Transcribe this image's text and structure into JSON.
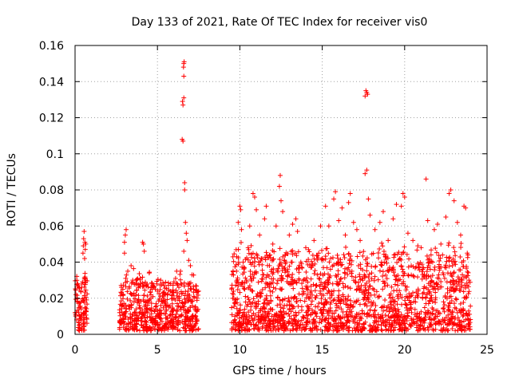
{
  "chart_data": {
    "type": "scatter",
    "title": "Day 133 of 2021, Rate Of TEC Index for receiver vis0",
    "xlabel": "GPS time / hours",
    "ylabel": "ROTI / TECUs",
    "xlim": [
      0,
      25
    ],
    "ylim": [
      0,
      0.16
    ],
    "xticks": [
      {
        "value": 0,
        "label": "0"
      },
      {
        "value": 5,
        "label": "5"
      },
      {
        "value": 10,
        "label": "10"
      },
      {
        "value": 15,
        "label": "15"
      },
      {
        "value": 20,
        "label": "20"
      },
      {
        "value": 25,
        "label": "25"
      }
    ],
    "yticks": [
      {
        "value": 0,
        "label": "0"
      },
      {
        "value": 0.02,
        "label": "0.02"
      },
      {
        "value": 0.04,
        "label": "0.04"
      },
      {
        "value": 0.06,
        "label": "0.06"
      },
      {
        "value": 0.08,
        "label": "0.08"
      },
      {
        "value": 0.1,
        "label": "0.1"
      },
      {
        "value": 0.12,
        "label": "0.12"
      },
      {
        "value": 0.14,
        "label": "0.14"
      },
      {
        "value": 0.16,
        "label": "0.16"
      }
    ],
    "grid": true,
    "marker": "+",
    "series": [
      {
        "name": "ROTI",
        "color": "#ff0000",
        "points": [
          [
            0.0,
            0.012
          ],
          [
            0.05,
            0.022
          ],
          [
            0.1,
            0.008
          ],
          [
            0.15,
            0.018
          ],
          [
            0.2,
            0.027
          ],
          [
            0.25,
            0.005
          ],
          [
            0.3,
            0.015
          ],
          [
            0.35,
            0.024
          ],
          [
            0.4,
            0.011
          ],
          [
            0.45,
            0.029
          ],
          [
            0.5,
            0.006
          ],
          [
            0.55,
            0.02
          ],
          [
            0.6,
            0.031
          ],
          [
            0.65,
            0.013
          ],
          [
            0.7,
            0.009
          ],
          [
            0.48,
            0.045
          ],
          [
            0.5,
            0.049
          ],
          [
            0.52,
            0.053
          ],
          [
            0.55,
            0.057
          ],
          [
            0.6,
            0.051
          ],
          [
            0.65,
            0.05
          ],
          [
            0.58,
            0.042
          ],
          [
            0.62,
            0.047
          ],
          [
            2.8,
            0.008
          ],
          [
            2.9,
            0.025
          ],
          [
            3.0,
            0.045
          ],
          [
            3.05,
            0.055
          ],
          [
            3.1,
            0.058
          ],
          [
            3.0,
            0.051
          ],
          [
            3.2,
            0.035
          ],
          [
            3.3,
            0.014
          ],
          [
            3.4,
            0.038
          ],
          [
            3.5,
            0.03
          ],
          [
            3.6,
            0.012
          ],
          [
            3.7,
            0.022
          ],
          [
            3.8,
            0.009
          ],
          [
            3.9,
            0.016
          ],
          [
            4.0,
            0.028
          ],
          [
            4.1,
            0.051
          ],
          [
            4.15,
            0.05
          ],
          [
            4.2,
            0.046
          ],
          [
            4.3,
            0.018
          ],
          [
            4.4,
            0.012
          ],
          [
            4.5,
            0.034
          ],
          [
            4.6,
            0.02
          ],
          [
            4.7,
            0.008
          ],
          [
            4.8,
            0.026
          ],
          [
            4.9,
            0.014
          ],
          [
            5.0,
            0.024
          ],
          [
            5.1,
            0.011
          ],
          [
            5.2,
            0.03
          ],
          [
            5.3,
            0.018
          ],
          [
            5.4,
            0.027
          ],
          [
            5.5,
            0.009
          ],
          [
            5.6,
            0.022
          ],
          [
            5.7,
            0.015
          ],
          [
            5.8,
            0.028
          ],
          [
            5.9,
            0.013
          ],
          [
            6.0,
            0.02
          ],
          [
            6.1,
            0.031
          ],
          [
            6.2,
            0.017
          ],
          [
            6.3,
            0.026
          ],
          [
            6.4,
            0.035
          ],
          [
            6.5,
            0.108
          ],
          [
            6.55,
            0.107
          ],
          [
            6.55,
            0.127
          ],
          [
            6.6,
            0.131
          ],
          [
            6.52,
            0.129
          ],
          [
            6.6,
            0.143
          ],
          [
            6.58,
            0.148
          ],
          [
            6.6,
            0.15
          ],
          [
            6.62,
            0.151
          ],
          [
            6.65,
            0.084
          ],
          [
            6.65,
            0.08
          ],
          [
            6.7,
            0.062
          ],
          [
            6.75,
            0.056
          ],
          [
            6.8,
            0.052
          ],
          [
            6.6,
            0.046
          ],
          [
            6.9,
            0.041
          ],
          [
            7.0,
            0.038
          ],
          [
            7.1,
            0.033
          ],
          [
            7.2,
            0.025
          ],
          [
            7.3,
            0.014
          ],
          [
            7.4,
            0.02
          ],
          [
            6.7,
            0.012
          ],
          [
            6.9,
            0.007
          ],
          [
            7.1,
            0.01
          ],
          [
            9.6,
            0.022
          ],
          [
            9.7,
            0.01
          ],
          [
            9.8,
            0.035
          ],
          [
            9.9,
            0.062
          ],
          [
            10.0,
            0.071
          ],
          [
            10.05,
            0.069
          ],
          [
            10.1,
            0.058
          ],
          [
            10.2,
            0.04
          ],
          [
            10.3,
            0.025
          ],
          [
            10.5,
            0.048
          ],
          [
            10.6,
            0.06
          ],
          [
            10.8,
            0.078
          ],
          [
            10.9,
            0.076
          ],
          [
            11.0,
            0.069
          ],
          [
            11.2,
            0.055
          ],
          [
            11.3,
            0.042
          ],
          [
            11.5,
            0.064
          ],
          [
            11.6,
            0.071
          ],
          [
            11.8,
            0.038
          ],
          [
            12.0,
            0.05
          ],
          [
            12.2,
            0.06
          ],
          [
            12.4,
            0.082
          ],
          [
            12.45,
            0.088
          ],
          [
            12.5,
            0.074
          ],
          [
            12.6,
            0.068
          ],
          [
            12.8,
            0.04
          ],
          [
            13.0,
            0.055
          ],
          [
            13.2,
            0.061
          ],
          [
            13.4,
            0.064
          ],
          [
            13.5,
            0.057
          ],
          [
            13.7,
            0.04
          ],
          [
            14.0,
            0.048
          ],
          [
            14.3,
            0.037
          ],
          [
            14.5,
            0.052
          ],
          [
            14.7,
            0.033
          ],
          [
            14.9,
            0.06
          ],
          [
            15.0,
            0.042
          ],
          [
            15.2,
            0.071
          ],
          [
            15.4,
            0.06
          ],
          [
            15.7,
            0.075
          ],
          [
            15.8,
            0.079
          ],
          [
            16.0,
            0.063
          ],
          [
            16.2,
            0.07
          ],
          [
            16.4,
            0.055
          ],
          [
            16.6,
            0.073
          ],
          [
            16.7,
            0.078
          ],
          [
            16.9,
            0.062
          ],
          [
            17.1,
            0.058
          ],
          [
            17.3,
            0.052
          ],
          [
            17.6,
            0.132
          ],
          [
            17.65,
            0.135
          ],
          [
            17.7,
            0.134
          ],
          [
            17.75,
            0.133
          ],
          [
            17.6,
            0.089
          ],
          [
            17.7,
            0.091
          ],
          [
            17.8,
            0.075
          ],
          [
            17.9,
            0.066
          ],
          [
            18.2,
            0.058
          ],
          [
            18.5,
            0.062
          ],
          [
            18.7,
            0.068
          ],
          [
            19.0,
            0.052
          ],
          [
            19.3,
            0.064
          ],
          [
            19.5,
            0.072
          ],
          [
            19.8,
            0.071
          ],
          [
            19.9,
            0.078
          ],
          [
            20.0,
            0.076
          ],
          [
            20.2,
            0.056
          ],
          [
            20.5,
            0.052
          ],
          [
            20.8,
            0.049
          ],
          [
            21.0,
            0.048
          ],
          [
            21.3,
            0.086
          ],
          [
            21.4,
            0.063
          ],
          [
            21.6,
            0.044
          ],
          [
            21.8,
            0.058
          ],
          [
            22.0,
            0.061
          ],
          [
            22.2,
            0.05
          ],
          [
            22.5,
            0.065
          ],
          [
            22.7,
            0.078
          ],
          [
            22.8,
            0.08
          ],
          [
            23.0,
            0.074
          ],
          [
            23.2,
            0.062
          ],
          [
            23.4,
            0.055
          ],
          [
            23.6,
            0.071
          ],
          [
            23.7,
            0.07
          ],
          [
            23.8,
            0.045
          ],
          [
            23.9,
            0.03
          ],
          [
            9.6,
            0.004
          ],
          [
            9.9,
            0.012
          ],
          [
            10.2,
            0.006
          ],
          [
            10.6,
            0.018
          ],
          [
            11.1,
            0.008
          ],
          [
            11.6,
            0.02
          ],
          [
            12.1,
            0.01
          ],
          [
            12.7,
            0.016
          ],
          [
            13.2,
            0.006
          ],
          [
            13.8,
            0.022
          ],
          [
            14.4,
            0.012
          ],
          [
            15.1,
            0.025
          ],
          [
            15.6,
            0.009
          ],
          [
            16.3,
            0.018
          ],
          [
            16.9,
            0.008
          ],
          [
            17.5,
            0.024
          ],
          [
            18.1,
            0.011
          ],
          [
            18.8,
            0.019
          ],
          [
            19.4,
            0.007
          ],
          [
            20.1,
            0.021
          ],
          [
            20.7,
            0.01
          ],
          [
            21.3,
            0.017
          ],
          [
            21.9,
            0.006
          ],
          [
            22.6,
            0.023
          ],
          [
            23.2,
            0.012
          ],
          [
            23.9,
            0.008
          ],
          [
            10.4,
            0.03
          ],
          [
            11.0,
            0.034
          ],
          [
            11.9,
            0.028
          ],
          [
            12.9,
            0.032
          ],
          [
            13.6,
            0.03
          ],
          [
            14.1,
            0.026
          ],
          [
            14.8,
            0.031
          ],
          [
            15.5,
            0.036
          ],
          [
            16.1,
            0.04
          ],
          [
            16.8,
            0.035
          ],
          [
            17.2,
            0.038
          ],
          [
            18.0,
            0.034
          ],
          [
            18.6,
            0.04
          ],
          [
            19.2,
            0.036
          ],
          [
            19.7,
            0.042
          ],
          [
            20.4,
            0.038
          ],
          [
            21.1,
            0.036
          ],
          [
            21.7,
            0.04
          ],
          [
            22.3,
            0.044
          ],
          [
            22.9,
            0.038
          ],
          [
            23.5,
            0.033
          ]
        ]
      }
    ],
    "dense_segments": [
      {
        "start": 0.0,
        "end": 0.75,
        "floor": 0.002,
        "typical": 0.012,
        "peak": 0.031
      },
      {
        "start": 2.7,
        "end": 7.5,
        "floor": 0.002,
        "typical": 0.013,
        "peak": 0.03
      },
      {
        "start": 9.5,
        "end": 24.0,
        "floor": 0.002,
        "typical": 0.014,
        "peak": 0.045
      }
    ]
  }
}
